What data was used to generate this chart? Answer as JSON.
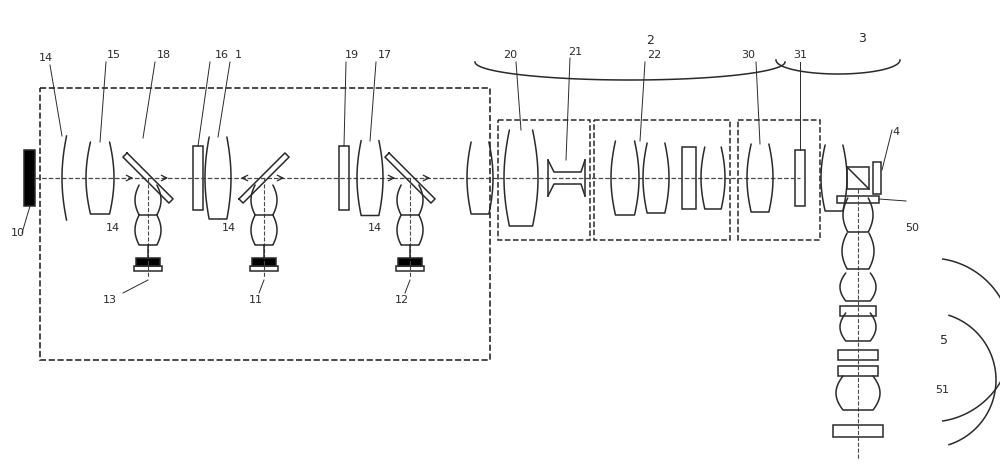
{
  "bg_color": "#ffffff",
  "line_color": "#2a2a2a",
  "dashed_color": "#4a4a4a",
  "fig_width": 10.0,
  "fig_height": 4.73,
  "dpi": 100
}
